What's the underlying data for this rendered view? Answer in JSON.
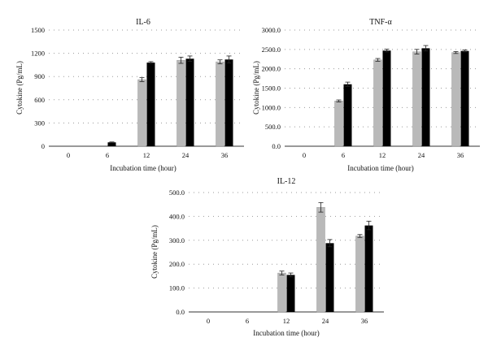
{
  "figure": {
    "colors": {
      "series_a": "#b9b9b9",
      "series_b": "#000000",
      "grid": "#9a9a9a",
      "axis": "#333333"
    }
  },
  "chart_data": [
    {
      "type": "bar",
      "title": "IL-6",
      "xlabel": "Incubation time (hour)",
      "ylabel": "Cytokine (Pg/mL)",
      "categories": [
        "0",
        "6",
        "12",
        "24",
        "36"
      ],
      "ylim": [
        0,
        1500
      ],
      "yticks": [
        "0",
        "300",
        "600",
        "900",
        "1200",
        "1500"
      ],
      "grid": true,
      "series": [
        {
          "values": [
            0,
            0,
            860,
            1110,
            1090
          ],
          "errors": [
            0,
            0,
            25,
            40,
            25
          ]
        },
        {
          "values": [
            0,
            50,
            1080,
            1130,
            1120
          ],
          "errors": [
            0,
            5,
            12,
            35,
            45
          ]
        }
      ]
    },
    {
      "type": "bar",
      "title": "TNF-α",
      "xlabel": "Incubation time (hour)",
      "ylabel": "Cytokine (Pg/mL)",
      "categories": [
        "0",
        "6",
        "12",
        "24",
        "36"
      ],
      "ylim": [
        0,
        3000
      ],
      "yticks": [
        "0.0",
        "500.0",
        "1000.0",
        "1500.0",
        "2000.0",
        "2500.0",
        "3000.0"
      ],
      "grid": true,
      "series": [
        {
          "values": [
            0,
            1170,
            2230,
            2440,
            2420
          ],
          "errors": [
            0,
            25,
            35,
            60,
            25
          ]
        },
        {
          "values": [
            0,
            1600,
            2470,
            2530,
            2460
          ],
          "errors": [
            0,
            55,
            35,
            70,
            25
          ]
        }
      ]
    },
    {
      "type": "bar",
      "title": "IL-12",
      "xlabel": "Incubation time (hour)",
      "ylabel": "Cytokine (Pg/mL)",
      "categories": [
        "0",
        "6",
        "12",
        "24",
        "36"
      ],
      "ylim": [
        0,
        500
      ],
      "yticks": [
        "0.0",
        "100.0",
        "200.0",
        "300.0",
        "400.0",
        "500.0"
      ],
      "grid": true,
      "series": [
        {
          "values": [
            0,
            0,
            163,
            438,
            318
          ],
          "errors": [
            0,
            0,
            8,
            20,
            6
          ]
        },
        {
          "values": [
            0,
            0,
            155,
            288,
            362
          ],
          "errors": [
            0,
            0,
            8,
            15,
            18
          ]
        }
      ]
    }
  ]
}
